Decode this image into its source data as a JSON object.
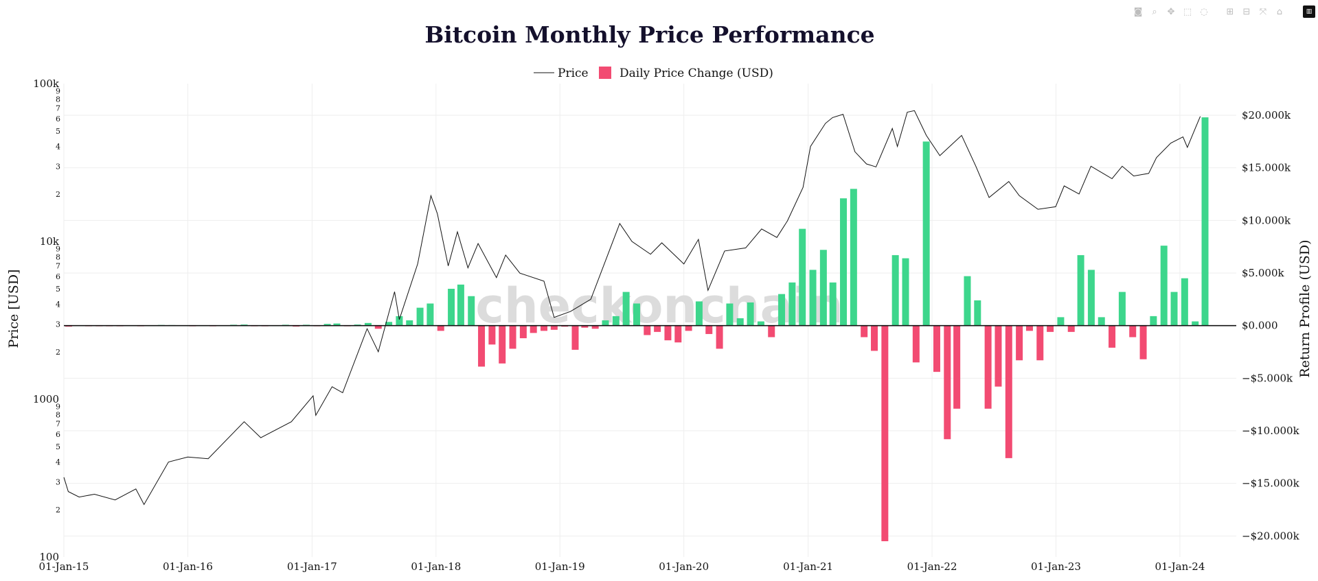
{
  "modebar": {
    "icons": [
      "camera-icon",
      "zoom-icon",
      "pan-icon",
      "box-select-icon",
      "lasso-select-icon",
      "zoom-in-icon",
      "zoom-out-icon",
      "autoscale-icon",
      "reset-axes-icon",
      "plotly-logo-icon"
    ]
  },
  "chart_data": {
    "type": "bar",
    "title": "Bitcoin Monthly Price Performance",
    "legend": {
      "placement": "top-center",
      "entries": [
        "Price",
        "Daily Price Change (USD)"
      ]
    },
    "colors": {
      "price_line": "#111111",
      "positive": "#3dd68c",
      "negative": "#f24b72",
      "zero_line": "#111111"
    },
    "watermark": "checkonchain",
    "x_axis": {
      "range": [
        "2015-01-01",
        "2024-06-15"
      ],
      "tick_labels": [
        "01-Jan-15",
        "01-Jan-16",
        "01-Jan-17",
        "01-Jan-18",
        "01-Jan-19",
        "01-Jan-20",
        "01-Jan-21",
        "01-Jan-22",
        "01-Jan-23",
        "01-Jan-24"
      ]
    },
    "y_left": {
      "label": "Price [USD]",
      "scale": "log",
      "range": [
        100,
        100000
      ],
      "major_ticks": [
        "100",
        "1000",
        "10k",
        "100k"
      ],
      "minor_ticks": [
        "2",
        "3",
        "4",
        "5",
        "6",
        "7",
        "8",
        "9"
      ]
    },
    "y_right": {
      "label": "Return Profile (USD)",
      "range": [
        -22000,
        23000
      ],
      "tick_values": [
        -20000,
        -15000,
        -10000,
        -5000,
        0,
        5000,
        10000,
        15000,
        20000
      ],
      "tick_labels": [
        "−$20.000k",
        "−$15.000k",
        "−$10.000k",
        "−$5.000k",
        "$0.000",
        "$5.000k",
        "$10.000k",
        "$15.000k",
        "$20.000k"
      ]
    },
    "grid": true,
    "price_series": {
      "name": "Price",
      "x": [
        "2015-01-01",
        "2015-01-14",
        "2015-02-15",
        "2015-04-01",
        "2015-06-01",
        "2015-08-01",
        "2015-08-25",
        "2015-11-05",
        "2016-01-01",
        "2016-03-01",
        "2016-06-15",
        "2016-08-03",
        "2016-11-01",
        "2017-01-04",
        "2017-01-12",
        "2017-03-01",
        "2017-04-01",
        "2017-06-12",
        "2017-07-15",
        "2017-09-01",
        "2017-09-15",
        "2017-11-08",
        "2017-12-17",
        "2018-01-05",
        "2018-02-06",
        "2018-03-05",
        "2018-04-05",
        "2018-05-05",
        "2018-06-28",
        "2018-07-25",
        "2018-09-05",
        "2018-11-15",
        "2018-12-15",
        "2019-02-01",
        "2019-04-02",
        "2019-06-26",
        "2019-08-01",
        "2019-09-25",
        "2019-10-28",
        "2020-01-01",
        "2020-02-13",
        "2020-03-12",
        "2020-04-30",
        "2020-07-01",
        "2020-08-17",
        "2020-10-01",
        "2020-11-01",
        "2020-12-17",
        "2021-01-08",
        "2021-02-21",
        "2021-03-14",
        "2021-04-14",
        "2021-05-19",
        "2021-06-22",
        "2021-07-20",
        "2021-09-06",
        "2021-09-21",
        "2021-10-20",
        "2021-11-10",
        "2021-12-15",
        "2022-01-24",
        "2022-03-29",
        "2022-05-10",
        "2022-06-18",
        "2022-08-15",
        "2022-09-15",
        "2022-11-09",
        "2022-12-31",
        "2023-01-25",
        "2023-03-10",
        "2023-04-14",
        "2023-06-15",
        "2023-07-15",
        "2023-08-18",
        "2023-10-01",
        "2023-10-24",
        "2023-12-05",
        "2024-01-10",
        "2024-01-23",
        "2024-02-15",
        "2024-03-01"
      ],
      "y": [
        320,
        260,
        240,
        250,
        230,
        270,
        215,
        400,
        430,
        420,
        720,
        570,
        720,
        1050,
        790,
        1200,
        1100,
        2800,
        2000,
        4800,
        3200,
        7200,
        19500,
        15000,
        7000,
        11500,
        6800,
        9700,
        5900,
        8200,
        6300,
        5600,
        3300,
        3600,
        4300,
        13000,
        10000,
        8300,
        9800,
        7200,
        10300,
        4900,
        8700,
        9100,
        12000,
        10600,
        13500,
        22000,
        40000,
        56000,
        61000,
        64000,
        37000,
        31000,
        29700,
        52000,
        40000,
        66000,
        67500,
        47000,
        35000,
        47000,
        30000,
        19000,
        24000,
        19500,
        16000,
        16600,
        22500,
        20000,
        30000,
        25000,
        30000,
        26000,
        27000,
        34000,
        42000,
        46000,
        39500,
        52000,
        62000
      ]
    },
    "bar_series": {
      "name": "Daily Price Change (USD)",
      "x": [
        "2015-01",
        "2015-02",
        "2015-03",
        "2015-04",
        "2015-05",
        "2015-06",
        "2015-07",
        "2015-08",
        "2015-09",
        "2015-10",
        "2015-11",
        "2015-12",
        "2016-01",
        "2016-02",
        "2016-03",
        "2016-04",
        "2016-05",
        "2016-06",
        "2016-07",
        "2016-08",
        "2016-09",
        "2016-10",
        "2016-11",
        "2016-12",
        "2017-01",
        "2017-02",
        "2017-03",
        "2017-04",
        "2017-05",
        "2017-06",
        "2017-07",
        "2017-08",
        "2017-09",
        "2017-10",
        "2017-11",
        "2017-12",
        "2018-01",
        "2018-02",
        "2018-03",
        "2018-04",
        "2018-05",
        "2018-06",
        "2018-07",
        "2018-08",
        "2018-09",
        "2018-10",
        "2018-11",
        "2018-12",
        "2019-01",
        "2019-02",
        "2019-03",
        "2019-04",
        "2019-05",
        "2019-06",
        "2019-07",
        "2019-08",
        "2019-09",
        "2019-10",
        "2019-11",
        "2019-12",
        "2020-01",
        "2020-02",
        "2020-03",
        "2020-04",
        "2020-05",
        "2020-06",
        "2020-07",
        "2020-08",
        "2020-09",
        "2020-10",
        "2020-11",
        "2020-12",
        "2021-01",
        "2021-02",
        "2021-03",
        "2021-04",
        "2021-05",
        "2021-06",
        "2021-07",
        "2021-08",
        "2021-09",
        "2021-10",
        "2021-11",
        "2021-12",
        "2022-01",
        "2022-02",
        "2022-03",
        "2022-04",
        "2022-05",
        "2022-06",
        "2022-07",
        "2022-08",
        "2022-09",
        "2022-10",
        "2022-11",
        "2022-12",
        "2023-01",
        "2023-02",
        "2023-03",
        "2023-04",
        "2023-05",
        "2023-06",
        "2023-07",
        "2023-08",
        "2023-09",
        "2023-10",
        "2023-11",
        "2023-12",
        "2024-01",
        "2024-02",
        "2024-03"
      ],
      "y": [
        -100,
        20,
        -30,
        -20,
        -10,
        -20,
        30,
        -30,
        10,
        60,
        50,
        40,
        -30,
        10,
        -10,
        20,
        80,
        100,
        -50,
        -40,
        10,
        80,
        -90,
        80,
        -10,
        160,
        200,
        -50,
        100,
        250,
        -300,
        350,
        900,
        500,
        1700,
        2100,
        -500,
        3500,
        3900,
        2800,
        -3900,
        -1800,
        -3600,
        -2200,
        -1200,
        -700,
        -500,
        -400,
        -100,
        -2300,
        -200,
        -300,
        500,
        900,
        3200,
        2100,
        -900,
        -600,
        -1400,
        -1600,
        -500,
        2300,
        -800,
        -2200,
        2100,
        700,
        2200,
        400,
        -1100,
        3000,
        4100,
        9200,
        5300,
        7200,
        4100,
        12100,
        13000,
        -1100,
        -2400,
        -20500,
        6700,
        6400,
        -3500,
        17500,
        -4400,
        -10800,
        -7900,
        4700,
        2400,
        -7900,
        -5800,
        -12600,
        -3300,
        -500,
        -3300,
        -600,
        800,
        -600,
        6700,
        5300,
        800,
        -2100,
        3200,
        -1100,
        -3200,
        900,
        7600,
        3200,
        4500,
        400,
        19800
      ]
    }
  }
}
